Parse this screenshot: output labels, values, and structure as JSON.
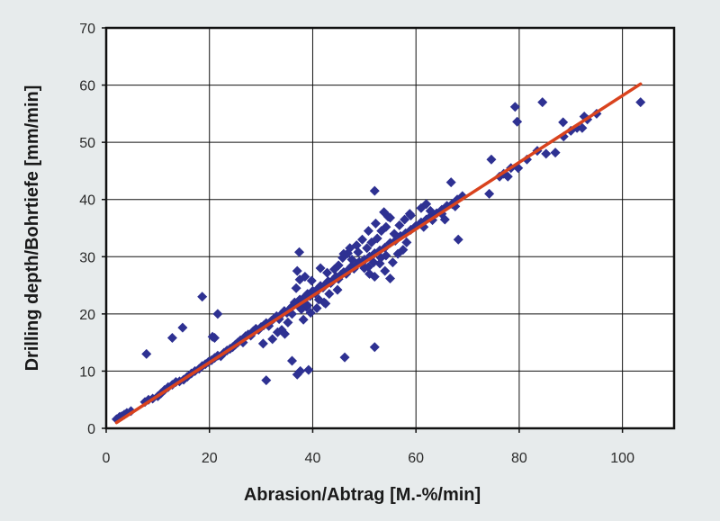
{
  "chart_data": {
    "type": "scatter",
    "title": "",
    "xlabel": "Abrasion/Abtrag [M.-%/min]",
    "ylabel": "Drilling depth/Bohrtiefe [mm/min]",
    "xlim": [
      0,
      110
    ],
    "ylim": [
      0,
      70
    ],
    "xticks": [
      0,
      20,
      40,
      60,
      80,
      100
    ],
    "yticks": [
      0,
      10,
      20,
      30,
      40,
      50,
      60,
      70
    ],
    "grid": true,
    "legend": "none",
    "colors": {
      "points": "#2e3192",
      "fit": "#d9431e",
      "plot_bg": "#ffffff",
      "page_bg": "#e7ebec"
    },
    "fit_line": {
      "x": [
        2,
        103.5
      ],
      "y": [
        1.0,
        60.2
      ]
    },
    "series": [
      {
        "points": [
          [
            2.0,
            1.6
          ],
          [
            2.6,
            2.0
          ],
          [
            3.0,
            2.1
          ],
          [
            3.5,
            2.4
          ],
          [
            4.0,
            2.7
          ],
          [
            4.8,
            3.0
          ],
          [
            7.5,
            4.6
          ],
          [
            8.2,
            5.0
          ],
          [
            9.0,
            5.2
          ],
          [
            10.0,
            5.6
          ],
          [
            10.6,
            6.1
          ],
          [
            11.3,
            6.7
          ],
          [
            12.0,
            7.2
          ],
          [
            12.8,
            7.6
          ],
          [
            13.5,
            8.1
          ],
          [
            14.2,
            8.2
          ],
          [
            15.0,
            8.5
          ],
          [
            15.7,
            9.0
          ],
          [
            16.5,
            9.6
          ],
          [
            17.2,
            10.0
          ],
          [
            18.0,
            10.4
          ],
          [
            18.6,
            10.9
          ],
          [
            19.2,
            11.2
          ],
          [
            19.8,
            11.6
          ],
          [
            20.4,
            11.9
          ],
          [
            21.0,
            12.3
          ],
          [
            21.6,
            12.7
          ],
          [
            22.2,
            12.6
          ],
          [
            22.8,
            13.2
          ],
          [
            23.4,
            13.6
          ],
          [
            24.0,
            13.9
          ],
          [
            24.5,
            14.2
          ],
          [
            25.0,
            14.6
          ],
          [
            25.5,
            15.0
          ],
          [
            26.0,
            15.4
          ],
          [
            26.5,
            15.0
          ],
          [
            27.0,
            16.1
          ],
          [
            27.5,
            16.4
          ],
          [
            28.0,
            16.2
          ],
          [
            28.5,
            17.0
          ],
          [
            29.0,
            17.4
          ],
          [
            29.5,
            17.2
          ],
          [
            30.0,
            17.7
          ],
          [
            30.5,
            18.0
          ],
          [
            31.0,
            18.4
          ],
          [
            31.5,
            17.9
          ],
          [
            32.0,
            18.8
          ],
          [
            32.5,
            19.2
          ],
          [
            33.0,
            19.6
          ],
          [
            33.5,
            19.1
          ],
          [
            34.0,
            20.0
          ],
          [
            34.5,
            20.5
          ],
          [
            35.0,
            20.2
          ],
          [
            35.5,
            20.8
          ],
          [
            36.0,
            21.3
          ],
          [
            36.5,
            22.0
          ],
          [
            37.0,
            21.6
          ],
          [
            37.5,
            22.5
          ],
          [
            38.0,
            22.2
          ],
          [
            38.5,
            23.0
          ],
          [
            39.0,
            23.5
          ],
          [
            39.5,
            23.1
          ],
          [
            40.0,
            24.0
          ],
          [
            40.5,
            23.6
          ],
          [
            41.0,
            24.4
          ],
          [
            41.5,
            24.9
          ],
          [
            42.0,
            24.6
          ],
          [
            42.5,
            25.2
          ],
          [
            43.0,
            25.7
          ],
          [
            43.5,
            25.4
          ],
          [
            44.0,
            26.0
          ],
          [
            44.5,
            26.5
          ],
          [
            45.0,
            26.1
          ],
          [
            45.5,
            26.9
          ],
          [
            46.0,
            27.3
          ],
          [
            46.5,
            27.0
          ],
          [
            47.0,
            27.8
          ],
          [
            47.5,
            28.3
          ],
          [
            48.0,
            27.9
          ],
          [
            48.5,
            28.6
          ],
          [
            49.0,
            29.1
          ],
          [
            49.5,
            28.8
          ],
          [
            50.0,
            29.5
          ],
          [
            51.0,
            30.0
          ],
          [
            52.0,
            30.6
          ],
          [
            53.0,
            31.1
          ],
          [
            54.0,
            31.6
          ],
          [
            55.0,
            32.4
          ],
          [
            56.0,
            32.8
          ],
          [
            57.0,
            33.6
          ],
          [
            58.0,
            34.1
          ],
          [
            59.0,
            34.7
          ],
          [
            60.0,
            35.4
          ],
          [
            61.0,
            36.0
          ],
          [
            62.0,
            36.5
          ],
          [
            63.0,
            37.2
          ],
          [
            64.0,
            37.6
          ],
          [
            65.0,
            38.2
          ],
          [
            66.0,
            38.9
          ],
          [
            67.0,
            39.2
          ],
          [
            68.0,
            40.0
          ],
          [
            69.0,
            40.6
          ],
          [
            36.8,
            24.5
          ],
          [
            37.5,
            26.0
          ],
          [
            37.0,
            27.5
          ],
          [
            38.5,
            26.5
          ],
          [
            39.8,
            25.8
          ],
          [
            38.8,
            21.2
          ],
          [
            39.6,
            20.2
          ],
          [
            40.8,
            21.0
          ],
          [
            42.2,
            22.0
          ],
          [
            36.0,
            20.0
          ],
          [
            37.8,
            20.8
          ],
          [
            38.2,
            19.0
          ],
          [
            35.2,
            18.5
          ],
          [
            34.0,
            17.2
          ],
          [
            33.2,
            16.8
          ],
          [
            32.2,
            15.6
          ],
          [
            41.5,
            28.0
          ],
          [
            42.8,
            27.2
          ],
          [
            44.2,
            27.8
          ],
          [
            45.8,
            29.8
          ],
          [
            46.8,
            30.6
          ],
          [
            47.6,
            29.5
          ],
          [
            48.8,
            30.8
          ],
          [
            50.5,
            31.5
          ],
          [
            51.4,
            32.5
          ],
          [
            52.5,
            33.2
          ],
          [
            53.3,
            34.5
          ],
          [
            54.2,
            35.2
          ],
          [
            55.0,
            36.8
          ],
          [
            53.8,
            37.8
          ],
          [
            54.6,
            37.0
          ],
          [
            52.2,
            35.8
          ],
          [
            50.8,
            34.5
          ],
          [
            49.6,
            33.0
          ],
          [
            48.5,
            32.0
          ],
          [
            47.2,
            31.5
          ],
          [
            46.0,
            30.5
          ],
          [
            45.0,
            28.5
          ],
          [
            50.0,
            28.0
          ],
          [
            51.0,
            27.0
          ],
          [
            52.0,
            26.5
          ],
          [
            53.0,
            28.8
          ],
          [
            54.0,
            27.5
          ],
          [
            55.5,
            29.0
          ],
          [
            56.5,
            30.5
          ],
          [
            57.5,
            31.2
          ],
          [
            58.2,
            32.5
          ],
          [
            55.0,
            26.2
          ],
          [
            54.2,
            30.2
          ],
          [
            53.2,
            29.8
          ],
          [
            51.8,
            29.0
          ],
          [
            50.8,
            28.2
          ],
          [
            43.2,
            23.5
          ],
          [
            44.8,
            24.2
          ],
          [
            42.5,
            21.8
          ],
          [
            41.2,
            22.5
          ],
          [
            39.0,
            21.5
          ],
          [
            55.8,
            34.0
          ],
          [
            56.8,
            35.5
          ],
          [
            57.8,
            36.5
          ],
          [
            59.0,
            37.2
          ],
          [
            61.0,
            38.5
          ],
          [
            62.0,
            39.2
          ],
          [
            62.8,
            38.0
          ],
          [
            63.2,
            36.4
          ],
          [
            61.5,
            35.2
          ],
          [
            65.0,
            37.5
          ],
          [
            65.6,
            36.5
          ],
          [
            66.8,
            43.0
          ],
          [
            67.6,
            38.8
          ],
          [
            68.2,
            33.0
          ],
          [
            74.2,
            41.0
          ],
          [
            74.6,
            47.0
          ],
          [
            76.2,
            44.0
          ],
          [
            77.0,
            44.5
          ],
          [
            77.8,
            44.0
          ],
          [
            78.4,
            45.5
          ],
          [
            79.8,
            45.5
          ],
          [
            81.5,
            47.0
          ],
          [
            83.5,
            48.5
          ],
          [
            85.2,
            48.0
          ],
          [
            87.0,
            48.2
          ],
          [
            88.6,
            51.0
          ],
          [
            90.0,
            52.0
          ],
          [
            91.2,
            52.5
          ],
          [
            92.2,
            52.5
          ],
          [
            93.2,
            54.0
          ],
          [
            95.0,
            55.0
          ],
          [
            103.5,
            57.0
          ],
          [
            84.5,
            57.0
          ],
          [
            79.2,
            56.2
          ],
          [
            79.6,
            53.6
          ],
          [
            88.5,
            53.5
          ],
          [
            92.6,
            54.5
          ],
          [
            7.8,
            13.0
          ],
          [
            12.8,
            15.8
          ],
          [
            14.8,
            17.6
          ],
          [
            18.6,
            23.0
          ],
          [
            20.6,
            16.0
          ],
          [
            21.6,
            20.0
          ],
          [
            21.0,
            15.8
          ],
          [
            30.4,
            14.8
          ],
          [
            31.0,
            8.4
          ],
          [
            34.6,
            16.5
          ],
          [
            36.0,
            11.8
          ],
          [
            37.0,
            9.4
          ],
          [
            37.6,
            10.0
          ],
          [
            37.4,
            30.8
          ],
          [
            39.2,
            10.2
          ],
          [
            46.2,
            12.4
          ],
          [
            52.0,
            14.2
          ],
          [
            52.0,
            41.5
          ],
          [
            58.8,
            37.5
          ]
        ]
      }
    ]
  }
}
